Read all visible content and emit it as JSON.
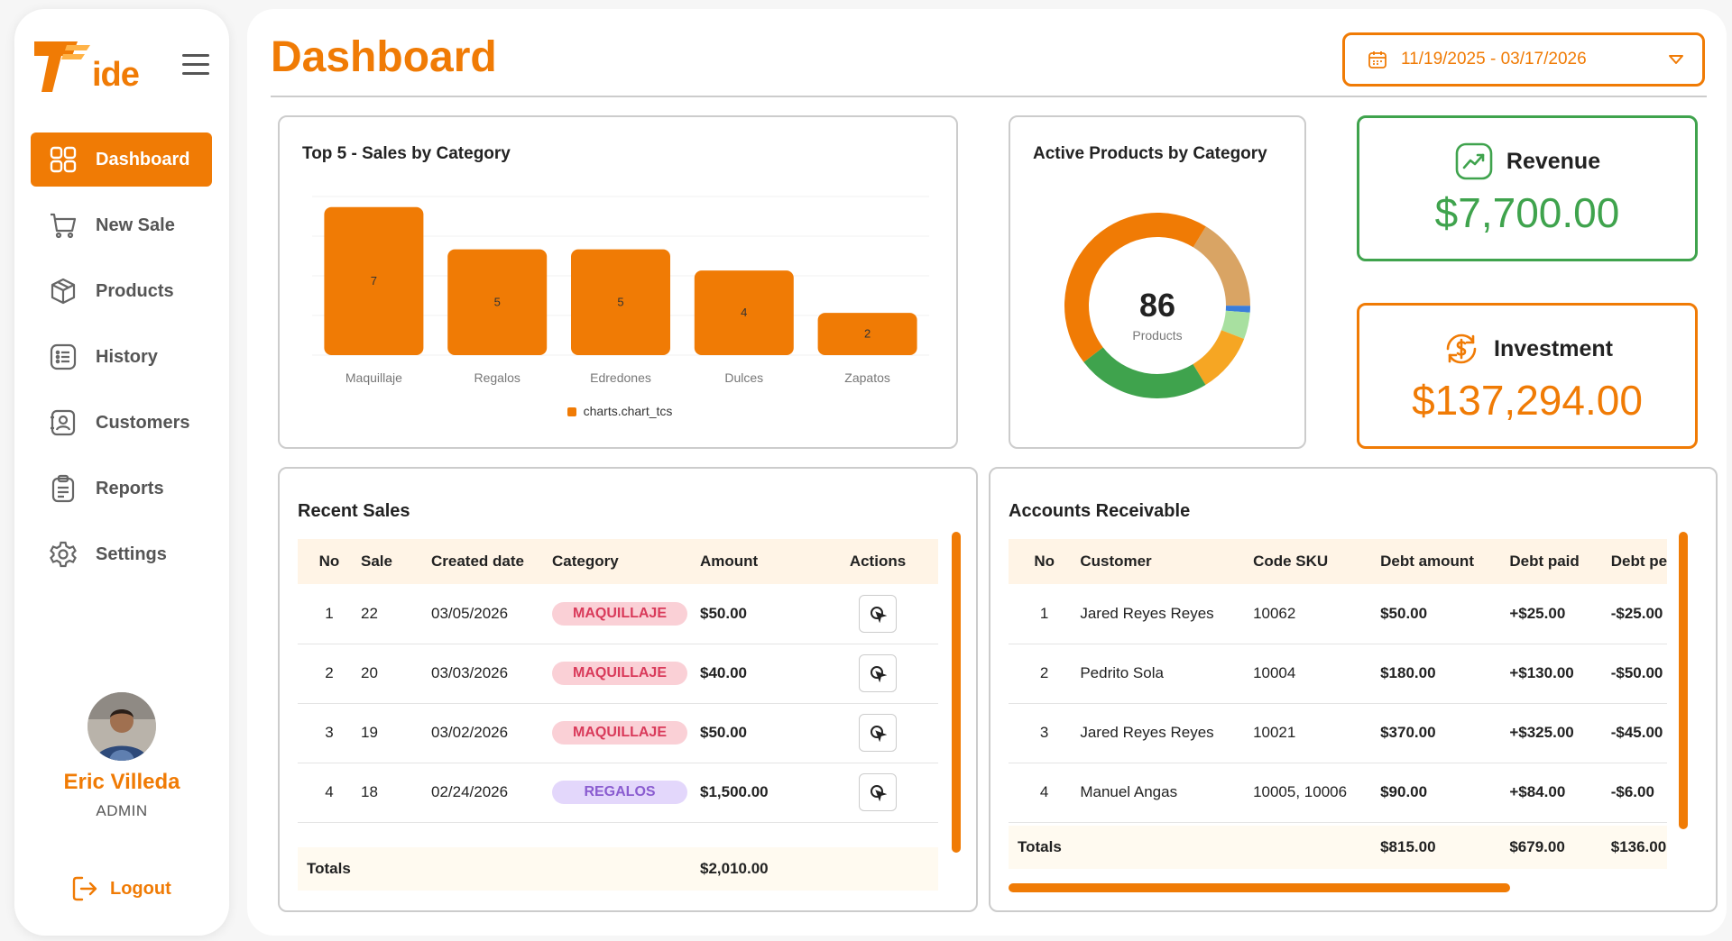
{
  "app": {
    "logo_text": "ide"
  },
  "sidebar": {
    "items": [
      {
        "label": "Dashboard",
        "icon": "grid-icon",
        "active": true
      },
      {
        "label": "New Sale",
        "icon": "cart-icon"
      },
      {
        "label": "Products",
        "icon": "box-icon"
      },
      {
        "label": "History",
        "icon": "list-icon"
      },
      {
        "label": "Customers",
        "icon": "contact-icon"
      },
      {
        "label": "Reports",
        "icon": "clipboard-icon"
      },
      {
        "label": "Settings",
        "icon": "gear-icon"
      }
    ],
    "user": {
      "name": "Eric Villeda",
      "role": "ADMIN"
    },
    "logout_label": "Logout"
  },
  "header": {
    "title": "Dashboard",
    "date_range": "11/19/2025 - 03/17/2026"
  },
  "bar_chart": {
    "title": "Top 5 - Sales by Category",
    "legend": "charts.chart_tcs"
  },
  "donut_chart": {
    "title": "Active Products by Category",
    "center_value": "86",
    "center_label": "Products"
  },
  "kpis": {
    "revenue": {
      "label": "Revenue",
      "value": "$7,700.00"
    },
    "investment": {
      "label": "Investment",
      "value": "$137,294.00"
    }
  },
  "recent_sales": {
    "title": "Recent Sales",
    "columns": [
      "No",
      "Sale",
      "Created date",
      "Category",
      "Amount",
      "Actions"
    ],
    "rows": [
      {
        "no": "1",
        "sale": "22",
        "date": "03/05/2026",
        "category": "MAQUILLAJE",
        "amount": "$50.00"
      },
      {
        "no": "2",
        "sale": "20",
        "date": "03/03/2026",
        "category": "MAQUILLAJE",
        "amount": "$40.00"
      },
      {
        "no": "3",
        "sale": "19",
        "date": "03/02/2026",
        "category": "MAQUILLAJE",
        "amount": "$50.00"
      },
      {
        "no": "4",
        "sale": "18",
        "date": "02/24/2026",
        "category": "REGALOS",
        "amount": "$1,500.00"
      }
    ],
    "totals_label": "Totals",
    "totals_amount": "$2,010.00"
  },
  "accounts_receivable": {
    "title": "Accounts Receivable",
    "columns": [
      "No",
      "Customer",
      "Code SKU",
      "Debt amount",
      "Debt paid",
      "Debt pending"
    ],
    "rows": [
      {
        "no": "1",
        "customer": "Jared Reyes Reyes",
        "sku": "10062",
        "amount": "$50.00",
        "paid": "+$25.00",
        "pending": "-$25.00"
      },
      {
        "no": "2",
        "customer": "Pedrito Sola",
        "sku": "10004",
        "amount": "$180.00",
        "paid": "+$130.00",
        "pending": "-$50.00"
      },
      {
        "no": "3",
        "customer": "Jared Reyes Reyes",
        "sku": "10021",
        "amount": "$370.00",
        "paid": "+$325.00",
        "pending": "-$45.00"
      },
      {
        "no": "4",
        "customer": "Manuel Angas",
        "sku": "10005, 10006",
        "amount": "$90.00",
        "paid": "+$84.00",
        "pending": "-$6.00"
      }
    ],
    "totals_label": "Totals",
    "totals_amount": "$815.00",
    "totals_paid": "$679.00",
    "totals_pending": "$136.00"
  },
  "chart_data": [
    {
      "type": "bar",
      "title": "Top 5 - Sales by Category",
      "categories": [
        "Maquillaje",
        "Regalos",
        "Edredones",
        "Dulces",
        "Zapatos"
      ],
      "series": [
        {
          "name": "charts.chart_tcs",
          "values": [
            7,
            5,
            5,
            4,
            2
          ]
        }
      ],
      "ylim": [
        0,
        7.5
      ],
      "grid": true,
      "legend": "bottom"
    },
    {
      "type": "pie",
      "title": "Active Products by Category",
      "slices": [
        {
          "value": 38,
          "color": "#f07b05"
        },
        {
          "value": 20,
          "color": "#3fa34d"
        },
        {
          "value": 9,
          "color": "#f6a623"
        },
        {
          "value": 4,
          "color": "#a8e0a0"
        },
        {
          "value": 1,
          "color": "#3a7ddb"
        },
        {
          "value": 14,
          "color": "#d9a464"
        }
      ],
      "total": 86
    }
  ],
  "colors": {
    "accent": "#f07b05",
    "positive": "#3fa34d",
    "negative": "#d9342b"
  }
}
